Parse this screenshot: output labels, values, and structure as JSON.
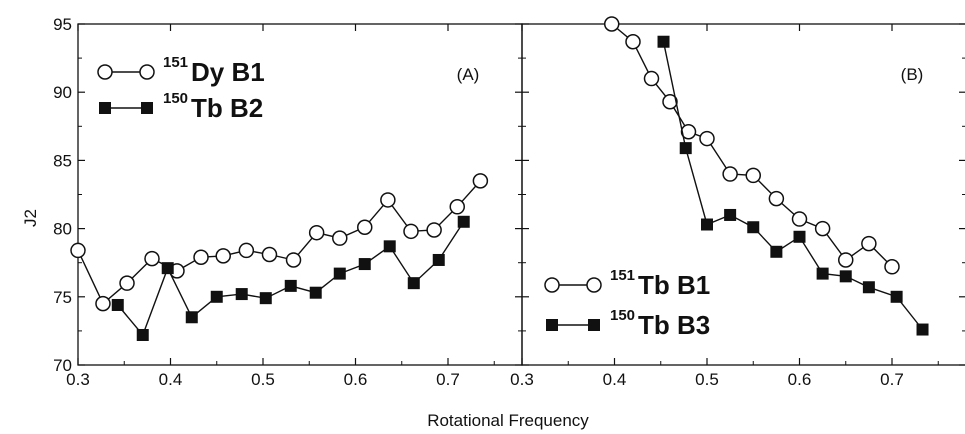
{
  "chart_data": {
    "type": "line",
    "xlabel": "Rotational Frequency",
    "ylabel": "J2",
    "ylim": [
      70,
      95
    ],
    "yticks": [
      "70",
      "75",
      "80",
      "85",
      "90",
      "95"
    ],
    "grid": false,
    "panels": [
      {
        "label": "(A)",
        "xlim": [
          0.3,
          0.78
        ],
        "xticks": [
          "0.3",
          "0.4",
          "0.5",
          "0.6",
          "0.7"
        ],
        "legend_position": "top-left",
        "series": [
          {
            "name": "151Dy B1",
            "name_sup": "151",
            "name_main": "Dy B1",
            "marker": "open-circle",
            "x": [
              0.3,
              0.327,
              0.353,
              0.38,
              0.407,
              0.433,
              0.457,
              0.482,
              0.507,
              0.533,
              0.558,
              0.583,
              0.61,
              0.635,
              0.66,
              0.685,
              0.71,
              0.735
            ],
            "y": [
              78.4,
              74.5,
              76.0,
              77.8,
              76.9,
              77.9,
              78.0,
              78.4,
              78.1,
              77.7,
              79.7,
              79.3,
              80.1,
              82.1,
              79.8,
              79.9,
              81.6,
              83.5
            ]
          },
          {
            "name": "150Tb B2",
            "name_sup": "150",
            "name_main": "Tb B2",
            "marker": "filled-square",
            "x": [
              0.343,
              0.37,
              0.397,
              0.423,
              0.45,
              0.477,
              0.503,
              0.53,
              0.557,
              0.583,
              0.61,
              0.637,
              0.663,
              0.69,
              0.717
            ],
            "y": [
              74.4,
              72.2,
              77.1,
              73.5,
              75.0,
              75.2,
              74.9,
              75.8,
              75.3,
              76.7,
              77.4,
              78.7,
              76.0,
              77.7,
              80.5
            ]
          }
        ]
      },
      {
        "label": "(B)",
        "xlim": [
          0.3,
          0.78
        ],
        "xticks": [
          "0.3",
          "0.4",
          "0.5",
          "0.6",
          "0.7"
        ],
        "legend_position": "bottom-left",
        "series": [
          {
            "name": "151Tb B1",
            "name_sup": "151",
            "name_main": "Tb B1",
            "marker": "open-circle",
            "x": [
              0.397,
              0.42,
              0.44,
              0.46,
              0.48,
              0.5,
              0.525,
              0.55,
              0.575,
              0.6,
              0.625,
              0.65,
              0.675,
              0.7
            ],
            "y": [
              95.0,
              93.7,
              91.0,
              89.3,
              87.1,
              86.6,
              84.0,
              83.9,
              82.2,
              80.7,
              80.0,
              77.7,
              78.9,
              77.2
            ]
          },
          {
            "name": "150Tb B3",
            "name_sup": "150",
            "name_main": "Tb B3",
            "marker": "filled-square",
            "x": [
              0.453,
              0.477,
              0.5,
              0.525,
              0.55,
              0.575,
              0.6,
              0.625,
              0.65,
              0.675,
              0.705,
              0.733
            ],
            "y": [
              93.7,
              85.9,
              80.3,
              81.0,
              80.1,
              78.3,
              79.4,
              76.7,
              76.5,
              75.7,
              75.0,
              72.6
            ]
          }
        ]
      }
    ]
  }
}
